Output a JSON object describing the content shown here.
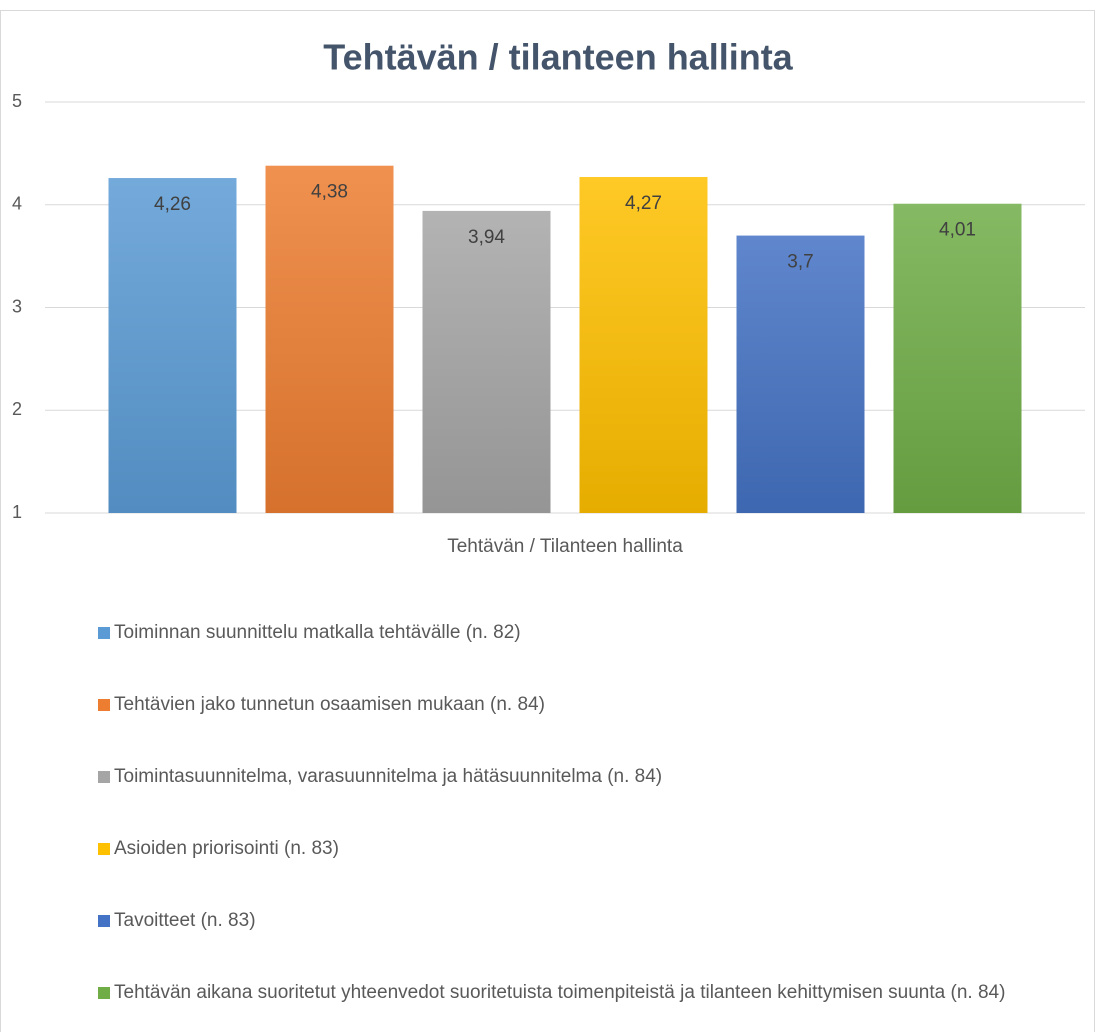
{
  "chart_data": {
    "type": "bar",
    "title": "Tehtävän / tilanteen hallinta",
    "categories": [
      "Tehtävän / Tilanteen hallinta"
    ],
    "series": [
      {
        "name": "Toiminnan suunnittelu matkalla tehtävälle (n. 82)",
        "color": "#5b9bd5",
        "values": [
          4.26
        ],
        "value_labels": [
          "4,26"
        ]
      },
      {
        "name": "Tehtävien jako tunnetun osaamisen mukaan (n. 84)",
        "color": "#ed7d31",
        "values": [
          4.38
        ],
        "value_labels": [
          "4,38"
        ]
      },
      {
        "name": "Toimintasuunnitelma, varasuunnitelma ja hätäsuunnitelma (n. 84)",
        "color": "#a5a5a5",
        "values": [
          3.94
        ],
        "value_labels": [
          "3,94"
        ]
      },
      {
        "name": "Asioiden priorisointi (n. 83)",
        "color": "#ffc000",
        "values": [
          4.27
        ],
        "value_labels": [
          "4,27"
        ]
      },
      {
        "name": "Tavoitteet (n. 83)",
        "color": "#4472c4",
        "values": [
          3.7
        ],
        "value_labels": [
          "3,7"
        ]
      },
      {
        "name": "Tehtävän aikana suoritetut yhteenvedot suoritetuista toimenpiteistä ja tilanteen kehittymisen suunta (n. 84)",
        "color": "#70ad47",
        "values": [
          4.01
        ],
        "value_labels": [
          "4,01"
        ]
      }
    ],
    "ylim": [
      1,
      5
    ],
    "yticks": [
      1,
      2,
      3,
      4,
      5
    ],
    "grid": true,
    "legend": "bottom"
  }
}
